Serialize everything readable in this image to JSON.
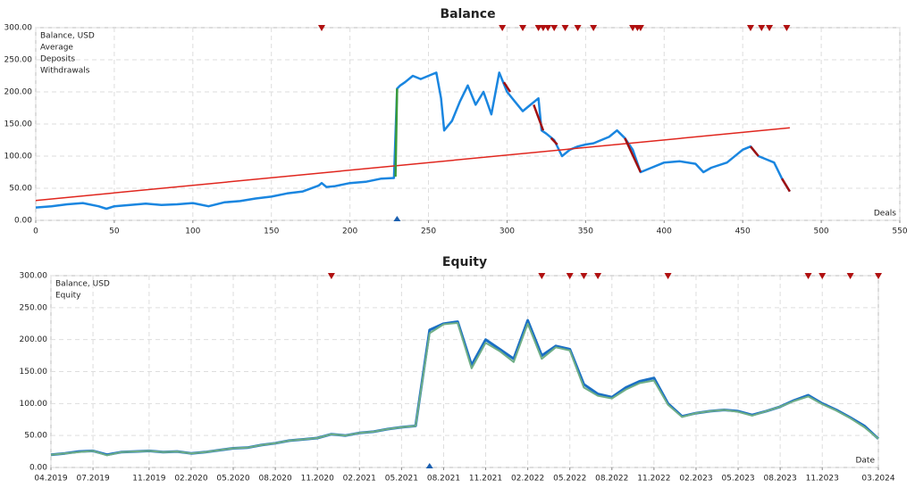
{
  "chart_data": [
    {
      "type": "line",
      "title": "Balance",
      "x_label": "Deals",
      "xlim": [
        0,
        550
      ],
      "xticks": [
        0,
        50,
        100,
        150,
        200,
        250,
        300,
        350,
        400,
        450,
        500,
        550
      ],
      "ylim": [
        0,
        300
      ],
      "yticks": [
        {
          "value": 0,
          "label": "0.00"
        },
        {
          "value": 50,
          "label": "50.00"
        },
        {
          "value": 100,
          "label": "100.00"
        },
        {
          "value": 150,
          "label": "150.00"
        },
        {
          "value": 200,
          "label": "200.00"
        },
        {
          "value": 250,
          "label": "250.00"
        },
        {
          "value": 300,
          "label": "300.00"
        }
      ],
      "grid": true,
      "series": [
        {
          "name": "Balance, USD",
          "color": "#1a86e0",
          "line_width": 2.5,
          "x": [
            0,
            10,
            20,
            30,
            40,
            45,
            50,
            60,
            70,
            80,
            90,
            100,
            110,
            120,
            130,
            140,
            150,
            160,
            170,
            180,
            182,
            185,
            190,
            200,
            210,
            220,
            228,
            230,
            232,
            235,
            240,
            245,
            250,
            255,
            258,
            260,
            265,
            270,
            275,
            280,
            285,
            290,
            295,
            300,
            305,
            310,
            315,
            320,
            322,
            325,
            330,
            335,
            340,
            345,
            350,
            355,
            360,
            365,
            370,
            375,
            380,
            385,
            390,
            400,
            410,
            420,
            425,
            430,
            440,
            450,
            455,
            460,
            465,
            470,
            475,
            480
          ],
          "values": [
            20,
            22,
            25,
            27,
            22,
            18,
            22,
            24,
            26,
            24,
            25,
            27,
            22,
            28,
            30,
            34,
            37,
            42,
            45,
            54,
            58,
            52,
            53,
            58,
            60,
            65,
            66,
            205,
            210,
            215,
            225,
            220,
            225,
            230,
            190,
            140,
            155,
            185,
            210,
            180,
            200,
            165,
            230,
            200,
            185,
            170,
            180,
            190,
            140,
            135,
            125,
            100,
            110,
            115,
            118,
            120,
            125,
            130,
            140,
            128,
            110,
            75,
            80,
            90,
            92,
            88,
            75,
            82,
            90,
            110,
            115,
            100,
            95,
            90,
            65,
            45
          ]
        },
        {
          "name": "Average",
          "color": "#e0261e",
          "line_width": 1.5,
          "x": [
            0,
            480
          ],
          "values": [
            31,
            144
          ]
        },
        {
          "name": "Deposits",
          "color": "#3a9a3a",
          "line_width": 2.5,
          "x": [
            229,
            230
          ],
          "values": [
            68,
            205
          ]
        },
        {
          "name": "Withdrawals",
          "color": "#a01010",
          "line_width": 2.5,
          "x": [
            298,
            302,
            null,
            317,
            323,
            null,
            328,
            332,
            null,
            375,
            385,
            null,
            455,
            460,
            null,
            475,
            480
          ],
          "values": [
            215,
            200,
            null,
            180,
            140,
            null,
            128,
            118,
            null,
            128,
            75,
            null,
            115,
            100,
            null,
            65,
            45
          ]
        }
      ],
      "top_markers": [
        182,
        297,
        310,
        320,
        323,
        326,
        330,
        337,
        345,
        355,
        380,
        383,
        385,
        455,
        462,
        467,
        478
      ],
      "top_marker_color": "#b01010",
      "bottom_markers": [
        230
      ],
      "bottom_marker_color": "#1a5fb0"
    },
    {
      "type": "line",
      "title": "Equity",
      "x_label": "Date",
      "xlim": [
        "04.2019",
        "03.2024"
      ],
      "xticks": [
        "04.2019",
        "07.2019",
        "11.2019",
        "02.2020",
        "05.2020",
        "08.2020",
        "11.2020",
        "02.2021",
        "05.2021",
        "08.2021",
        "11.2021",
        "02.2022",
        "05.2022",
        "08.2022",
        "11.2022",
        "02.2023",
        "05.2023",
        "08.2023",
        "11.2023",
        "03.2024"
      ],
      "ylim": [
        0,
        300
      ],
      "yticks": [
        {
          "value": 0,
          "label": "0.00"
        },
        {
          "value": 50,
          "label": "50.00"
        },
        {
          "value": 100,
          "label": "100.00"
        },
        {
          "value": 150,
          "label": "150.00"
        },
        {
          "value": 200,
          "label": "200.00"
        },
        {
          "value": 250,
          "label": "250.00"
        },
        {
          "value": 300,
          "label": "300.00"
        }
      ],
      "grid": true,
      "series": [
        {
          "name": "Balance, USD",
          "color": "#1a6fc4",
          "line_width": 3,
          "x": [
            "04.2019",
            "05.2019",
            "06.2019",
            "07.2019",
            "08.2019",
            "09.2019",
            "10.2019",
            "11.2019",
            "12.2019",
            "01.2020",
            "02.2020",
            "03.2020",
            "04.2020",
            "05.2020",
            "06.2020",
            "07.2020",
            "08.2020",
            "09.2020",
            "10.2020",
            "11.2020",
            "12.2020",
            "01.2021",
            "02.2021",
            "03.2021",
            "04.2021",
            "05.2021",
            "06.2021",
            "07.2021",
            "08.2021",
            "09.2021",
            "10.2021",
            "11.2021",
            "12.2021",
            "01.2022",
            "02.2022",
            "03.2022",
            "04.2022",
            "05.2022",
            "06.2022",
            "07.2022",
            "08.2022",
            "09.2022",
            "10.2022",
            "11.2022",
            "12.2022",
            "01.2023",
            "02.2023",
            "03.2023",
            "04.2023",
            "05.2023",
            "06.2023",
            "07.2023",
            "08.2023",
            "09.2023",
            "10.2023",
            "11.2023",
            "12.2023",
            "01.2024",
            "02.2024",
            "03.2024"
          ],
          "values": [
            20,
            22,
            25,
            26,
            20,
            24,
            25,
            26,
            24,
            25,
            22,
            24,
            27,
            30,
            31,
            35,
            38,
            42,
            44,
            46,
            52,
            50,
            54,
            56,
            60,
            63,
            65,
            215,
            225,
            228,
            160,
            200,
            185,
            170,
            230,
            175,
            190,
            185,
            130,
            115,
            110,
            125,
            135,
            140,
            100,
            80,
            85,
            88,
            90,
            88,
            82,
            88,
            95,
            105,
            113,
            100,
            90,
            78,
            65,
            45
          ]
        },
        {
          "name": "Equity",
          "color": "#6fae86",
          "line_width": 2,
          "x": [
            "04.2019",
            "05.2019",
            "06.2019",
            "07.2019",
            "08.2019",
            "09.2019",
            "10.2019",
            "11.2019",
            "12.2019",
            "01.2020",
            "02.2020",
            "03.2020",
            "04.2020",
            "05.2020",
            "06.2020",
            "07.2020",
            "08.2020",
            "09.2020",
            "10.2020",
            "11.2020",
            "12.2020",
            "01.2021",
            "02.2021",
            "03.2021",
            "04.2021",
            "05.2021",
            "06.2021",
            "07.2021",
            "08.2021",
            "09.2021",
            "10.2021",
            "11.2021",
            "12.2021",
            "01.2022",
            "02.2022",
            "03.2022",
            "04.2022",
            "05.2022",
            "06.2022",
            "07.2022",
            "08.2022",
            "09.2022",
            "10.2022",
            "11.2022",
            "12.2022",
            "01.2023",
            "02.2023",
            "03.2023",
            "04.2023",
            "05.2023",
            "06.2023",
            "07.2023",
            "08.2023",
            "09.2023",
            "10.2023",
            "11.2023",
            "12.2023",
            "01.2024",
            "02.2024",
            "03.2024"
          ],
          "values": [
            20,
            22,
            24,
            26,
            19,
            24,
            25,
            26,
            24,
            25,
            22,
            24,
            27,
            30,
            31,
            35,
            38,
            42,
            44,
            46,
            52,
            50,
            54,
            56,
            60,
            63,
            65,
            210,
            224,
            226,
            155,
            195,
            182,
            165,
            225,
            170,
            188,
            183,
            125,
            112,
            108,
            122,
            132,
            136,
            98,
            79,
            85,
            88,
            90,
            87,
            81,
            88,
            95,
            104,
            111,
            99,
            89,
            77,
            63,
            45
          ]
        }
      ],
      "top_markers": [
        "12.2020",
        "03.2022",
        "05.2022",
        "06.2022",
        "07.2022",
        "12.2022",
        "10.2023",
        "11.2023",
        "01.2024",
        "03.2024"
      ],
      "top_marker_color": "#b01010",
      "bottom_markers": [
        "07.2021"
      ],
      "bottom_marker_color": "#1a5fb0"
    }
  ]
}
